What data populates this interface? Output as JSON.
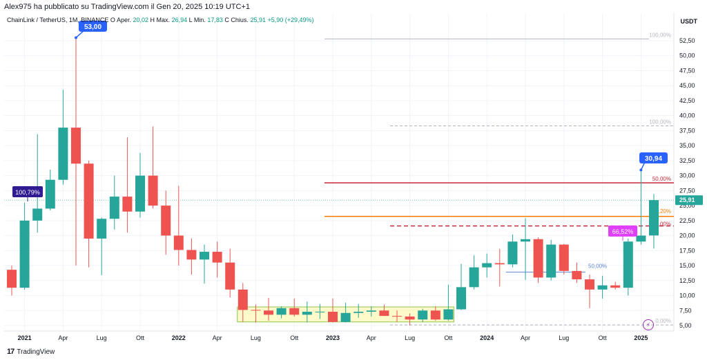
{
  "header": {
    "published": "Alex975 ha pubblicato su TradingView.com il Gen 20, 2025 10:19 UTC+1"
  },
  "symbol_bar": {
    "symbol": "ChainLink / TetherUS, 1M, BINANCE",
    "o_label": "O",
    "open_label": "Aper.",
    "open": "20,02",
    "high_label": "H",
    "max_label": "Max.",
    "high": "26,94",
    "low_label": "L",
    "min_label": "Min.",
    "low": "17,83",
    "close_label": "C",
    "chius_label": "Chius.",
    "close": "25,91",
    "change": "+5,90 (+29,49%)"
  },
  "currency": "USDT",
  "footer": {
    "logo": "17",
    "brand": "TradingView"
  },
  "colors": {
    "up": "#26a69a",
    "down": "#ef5350",
    "accent_blue": "#2962ff",
    "purple": "#311b92",
    "magenta": "#e040fb"
  },
  "chart_data": {
    "type": "candlestick",
    "interval": "1M",
    "y_axis": {
      "scale": "linear",
      "range": [
        4,
        56
      ],
      "side": "right",
      "grid": true,
      "ticks": [
        "5,00",
        "7,50",
        "10,00",
        "12,50",
        "15,00",
        "17,50",
        "20,00",
        "22,50",
        "25,00",
        "27,50",
        "30,00",
        "32,50",
        "35,00",
        "37,50",
        "40,00",
        "42,50",
        "45,00",
        "47,50",
        "50,00",
        "52,50"
      ]
    },
    "x_axis": {
      "labels": [
        "2021",
        "Apr",
        "Lug",
        "Ott",
        "2022",
        "Apr",
        "Lug",
        "Ott",
        "2023",
        "Apr",
        "Lug",
        "Ott",
        "2024",
        "Apr",
        "Lug",
        "Ott",
        "2025"
      ]
    },
    "candles": [
      {
        "t": "2020-12",
        "o": 14.3,
        "h": 15.0,
        "l": 10.0,
        "c": 11.3
      },
      {
        "t": "2021-01",
        "o": 11.3,
        "h": 25.5,
        "l": 11.0,
        "c": 22.5
      },
      {
        "t": "2021-02",
        "o": 22.5,
        "h": 36.9,
        "l": 20.5,
        "c": 24.5
      },
      {
        "t": "2021-03",
        "o": 24.5,
        "h": 31.0,
        "l": 24.2,
        "c": 29.3
      },
      {
        "t": "2021-04",
        "o": 29.3,
        "h": 44.3,
        "l": 28.5,
        "c": 38.0
      },
      {
        "t": "2021-05",
        "o": 38.0,
        "h": 53.0,
        "l": 15.0,
        "c": 32.0
      },
      {
        "t": "2021-06",
        "o": 32.0,
        "h": 32.5,
        "l": 14.7,
        "c": 19.5
      },
      {
        "t": "2021-07",
        "o": 19.5,
        "h": 23.0,
        "l": 13.4,
        "c": 22.8
      },
      {
        "t": "2021-08",
        "o": 22.8,
        "h": 30.0,
        "l": 21.0,
        "c": 26.5
      },
      {
        "t": "2021-09",
        "o": 26.5,
        "h": 36.4,
        "l": 20.5,
        "c": 24.0
      },
      {
        "t": "2021-10",
        "o": 24.0,
        "h": 33.8,
        "l": 23.0,
        "c": 30.0
      },
      {
        "t": "2021-11",
        "o": 30.0,
        "h": 38.2,
        "l": 24.5,
        "c": 25.0
      },
      {
        "t": "2021-12",
        "o": 25.0,
        "h": 27.5,
        "l": 16.8,
        "c": 20.0
      },
      {
        "t": "2022-01",
        "o": 20.0,
        "h": 28.3,
        "l": 15.0,
        "c": 17.6
      },
      {
        "t": "2022-02",
        "o": 17.6,
        "h": 19.5,
        "l": 13.5,
        "c": 16.0
      },
      {
        "t": "2022-03",
        "o": 16.0,
        "h": 18.5,
        "l": 12.0,
        "c": 17.3
      },
      {
        "t": "2022-04",
        "o": 17.3,
        "h": 19.0,
        "l": 13.0,
        "c": 15.5
      },
      {
        "t": "2022-05",
        "o": 15.5,
        "h": 17.8,
        "l": 9.7,
        "c": 11.0
      },
      {
        "t": "2022-06",
        "o": 11.0,
        "h": 12.1,
        "l": 5.6,
        "c": 7.6
      },
      {
        "t": "2022-07",
        "o": 7.6,
        "h": 8.5,
        "l": 5.5,
        "c": 7.5
      },
      {
        "t": "2022-08",
        "o": 7.5,
        "h": 9.6,
        "l": 5.8,
        "c": 6.8
      },
      {
        "t": "2022-09",
        "o": 6.8,
        "h": 8.2,
        "l": 6.2,
        "c": 7.9
      },
      {
        "t": "2022-10",
        "o": 7.9,
        "h": 9.5,
        "l": 6.5,
        "c": 6.8
      },
      {
        "t": "2022-11",
        "o": 6.8,
        "h": 9.0,
        "l": 5.5,
        "c": 7.3
      },
      {
        "t": "2022-12",
        "o": 7.3,
        "h": 8.6,
        "l": 6.1,
        "c": 7.3
      },
      {
        "t": "2023-01",
        "o": 7.3,
        "h": 9.5,
        "l": 5.5,
        "c": 5.6
      },
      {
        "t": "2023-02",
        "o": 5.6,
        "h": 8.8,
        "l": 5.5,
        "c": 7.1
      },
      {
        "t": "2023-03",
        "o": 7.1,
        "h": 8.6,
        "l": 6.3,
        "c": 7.3
      },
      {
        "t": "2023-04",
        "o": 7.3,
        "h": 8.2,
        "l": 6.5,
        "c": 7.5
      },
      {
        "t": "2023-05",
        "o": 7.5,
        "h": 8.5,
        "l": 6.8,
        "c": 6.6
      },
      {
        "t": "2023-06",
        "o": 6.6,
        "h": 7.5,
        "l": 5.6,
        "c": 6.5
      },
      {
        "t": "2023-07",
        "o": 6.5,
        "h": 7.0,
        "l": 5.0,
        "c": 6.0
      },
      {
        "t": "2023-08",
        "o": 6.0,
        "h": 7.8,
        "l": 5.6,
        "c": 7.5
      },
      {
        "t": "2023-09",
        "o": 7.5,
        "h": 8.2,
        "l": 5.8,
        "c": 6.0
      },
      {
        "t": "2023-10",
        "o": 6.0,
        "h": 11.8,
        "l": 5.8,
        "c": 7.7
      },
      {
        "t": "2023-11",
        "o": 7.7,
        "h": 15.3,
        "l": 7.6,
        "c": 11.4
      },
      {
        "t": "2023-12",
        "o": 11.4,
        "h": 16.7,
        "l": 11.0,
        "c": 14.7
      },
      {
        "t": "2024-01",
        "o": 14.7,
        "h": 17.0,
        "l": 13.0,
        "c": 15.4
      },
      {
        "t": "2024-02",
        "o": 15.4,
        "h": 17.8,
        "l": 11.5,
        "c": 15.2
      },
      {
        "t": "2024-03",
        "o": 15.2,
        "h": 20.2,
        "l": 14.7,
        "c": 19.0
      },
      {
        "t": "2024-04",
        "o": 19.0,
        "h": 22.9,
        "l": 12.6,
        "c": 19.4
      },
      {
        "t": "2024-05",
        "o": 19.4,
        "h": 19.7,
        "l": 12.1,
        "c": 13.0
      },
      {
        "t": "2024-06",
        "o": 13.0,
        "h": 19.3,
        "l": 12.5,
        "c": 18.5
      },
      {
        "t": "2024-07",
        "o": 18.5,
        "h": 18.6,
        "l": 13.5,
        "c": 14.1
      },
      {
        "t": "2024-08",
        "o": 14.1,
        "h": 15.5,
        "l": 12.1,
        "c": 12.7
      },
      {
        "t": "2024-09",
        "o": 12.7,
        "h": 13.5,
        "l": 7.9,
        "c": 11.0
      },
      {
        "t": "2024-10",
        "o": 11.0,
        "h": 13.3,
        "l": 9.5,
        "c": 11.7
      },
      {
        "t": "2024-11",
        "o": 11.7,
        "h": 12.3,
        "l": 11.0,
        "c": 11.3
      },
      {
        "t": "2024-12",
        "o": 11.3,
        "h": 19.5,
        "l": 10.0,
        "c": 19.0
      },
      {
        "t": "2025-01",
        "o": 19.0,
        "h": 30.9,
        "l": 18.5,
        "c": 20.0
      },
      {
        "t": "2025-02",
        "o": 20.02,
        "h": 26.94,
        "l": 17.83,
        "c": 25.91
      }
    ],
    "horizontal_lines": [
      {
        "name": "fib-100pct-top",
        "value": 52.8,
        "color": "#b2b5be",
        "style": "solid",
        "label": "100,00%"
      },
      {
        "name": "fib-100pct-mid",
        "value": 38.3,
        "color": "#b2b5be",
        "style": "dashed",
        "label": "100,00%"
      },
      {
        "name": "resistance-red",
        "value": 28.8,
        "color": "#c62839",
        "style": "solid",
        "label": "50,00%"
      },
      {
        "name": "support-orange",
        "value": 23.2,
        "color": "#f57c00",
        "style": "solid",
        "label": "38,20%"
      },
      {
        "name": "fib-dashed-red",
        "value": 21.6,
        "color": "#c62839",
        "style": "dashed",
        "label": "50,00%"
      },
      {
        "name": "fib-0pct",
        "value": 5.1,
        "color": "#b2b5be",
        "style": "dashed",
        "label": "0,00%"
      },
      {
        "name": "retrace-blue",
        "value": 13.9,
        "color": "#5b85d9",
        "style": "solid",
        "label": "50,00%"
      }
    ],
    "annotations": [
      {
        "name": "high-callout",
        "text": "53,00",
        "color": "#2962ff"
      },
      {
        "name": "recent-high-callout",
        "text": "30,94",
        "color": "#2962ff"
      },
      {
        "name": "pct-callout-left",
        "text": "100,79%",
        "color": "#311b92"
      },
      {
        "name": "pct-callout-right",
        "text": "66,52%",
        "color": "#e040fb"
      }
    ],
    "last_price": {
      "value": "25,91",
      "color": "#26a69a"
    },
    "consolidation_box": {
      "from": "2022-06",
      "to": "2023-10",
      "low": 5.6,
      "high": 8.1,
      "color": "#fff59d"
    }
  }
}
